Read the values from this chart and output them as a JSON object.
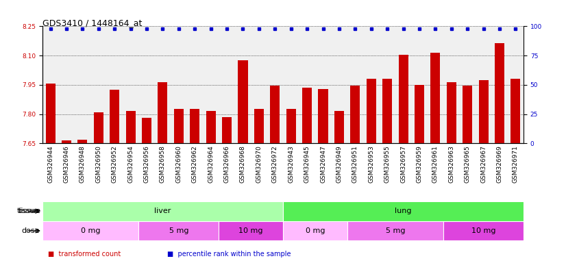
{
  "title": "GDS3410 / 1448164_at",
  "samples": [
    "GSM326944",
    "GSM326946",
    "GSM326948",
    "GSM326950",
    "GSM326952",
    "GSM326954",
    "GSM326956",
    "GSM326958",
    "GSM326960",
    "GSM326962",
    "GSM326964",
    "GSM326966",
    "GSM326968",
    "GSM326970",
    "GSM326972",
    "GSM326943",
    "GSM326945",
    "GSM326947",
    "GSM326949",
    "GSM326951",
    "GSM326953",
    "GSM326955",
    "GSM326957",
    "GSM326959",
    "GSM326961",
    "GSM326963",
    "GSM326965",
    "GSM326967",
    "GSM326969",
    "GSM326971"
  ],
  "bar_values": [
    7.955,
    7.665,
    7.67,
    7.81,
    7.925,
    7.815,
    7.78,
    7.965,
    7.825,
    7.825,
    7.815,
    7.785,
    8.075,
    7.825,
    7.945,
    7.825,
    7.935,
    7.93,
    7.815,
    7.945,
    7.98,
    7.98,
    8.105,
    7.95,
    8.115,
    7.965,
    7.945,
    7.975,
    8.165,
    7.98
  ],
  "bar_color": "#cc0000",
  "percentile_color": "#0000cc",
  "ylim_left": [
    7.65,
    8.25
  ],
  "ylim_right": [
    0,
    100
  ],
  "yticks_left": [
    7.65,
    7.8,
    7.95,
    8.1,
    8.25
  ],
  "yticks_right": [
    0,
    25,
    50,
    75,
    100
  ],
  "grid_values": [
    7.8,
    7.95,
    8.1
  ],
  "tissue_labels": [
    {
      "label": "liver",
      "start": 0,
      "end": 15,
      "color": "#aaffaa"
    },
    {
      "label": "lung",
      "start": 15,
      "end": 30,
      "color": "#55ee55"
    }
  ],
  "dose_labels": [
    {
      "label": "0 mg",
      "start": 0,
      "end": 6,
      "color": "#ffbbff"
    },
    {
      "label": "5 mg",
      "start": 6,
      "end": 11,
      "color": "#ee77ee"
    },
    {
      "label": "10 mg",
      "start": 11,
      "end": 15,
      "color": "#dd44dd"
    },
    {
      "label": "0 mg",
      "start": 15,
      "end": 19,
      "color": "#ffbbff"
    },
    {
      "label": "5 mg",
      "start": 19,
      "end": 25,
      "color": "#ee77ee"
    },
    {
      "label": "10 mg",
      "start": 25,
      "end": 30,
      "color": "#dd44dd"
    }
  ],
  "legend_items": [
    {
      "label": "transformed count",
      "color": "#cc0000"
    },
    {
      "label": "percentile rank within the sample",
      "color": "#0000cc"
    }
  ],
  "title_fontsize": 9,
  "tick_fontsize": 6.5,
  "label_fontsize": 8,
  "annot_fontsize": 7,
  "bg_color": "#f0f0f0"
}
